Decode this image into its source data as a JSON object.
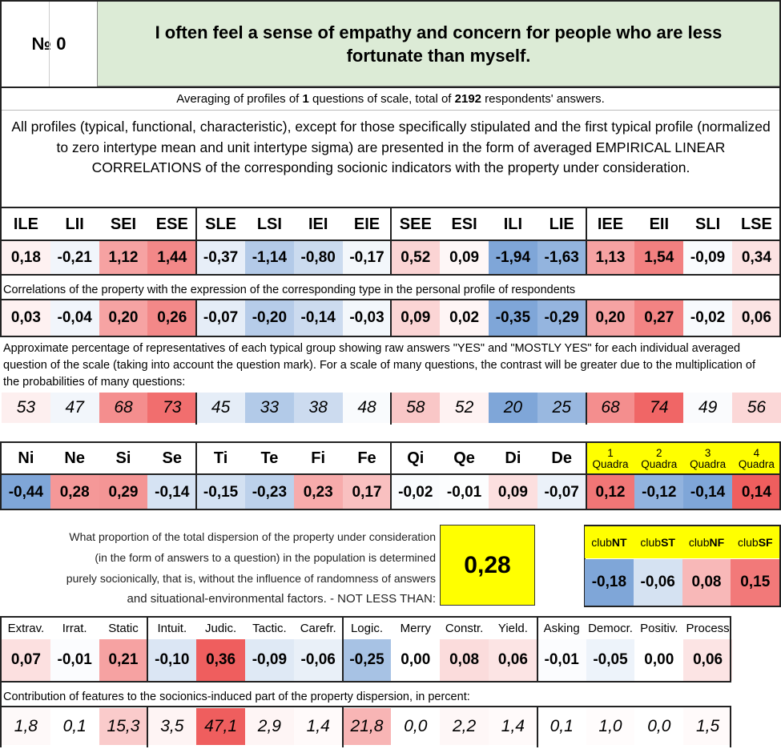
{
  "header": {
    "number_label": "№",
    "number_value": "0",
    "question": "I often feel a sense of empathy and concern for people who are less fortunate than myself."
  },
  "averaging": {
    "prefix": "Averaging of profiles of ",
    "questions": "1",
    "middle": " questions of scale, total of ",
    "respondents": "2192",
    "suffix": " respondents' answers."
  },
  "intro": "All profiles (typical, functional, characteristic), except for those specifically stipulated and the first typical profile (normalized to zero intertype mean and unit intertype sigma) are presented in the form of averaged EMPIRICAL LINEAR CORRELATIONS of the corresponding socionic indicators with the property under consideration.",
  "colors": {
    "title_bg": "#dcebd6",
    "yellow": "#ffff00",
    "red_strong": "#ef5e5e",
    "blue_strong": "#7fa6d8",
    "neutral": "#ffffff"
  },
  "types": {
    "headers": [
      "ILE",
      "LII",
      "SEI",
      "ESE",
      "SLE",
      "LSI",
      "IEI",
      "EIE",
      "SEE",
      "ESI",
      "ILI",
      "LIE",
      "IEE",
      "EII",
      "SLI",
      "LSE"
    ],
    "values": [
      "0,18",
      "-0,21",
      "1,12",
      "1,44",
      "-0,37",
      "-1,14",
      "-0,80",
      "-0,17",
      "0,52",
      "0,09",
      "-1,94",
      "-1,63",
      "1,13",
      "1,54",
      "-0,09",
      "0,34"
    ],
    "value_levels": [
      0.09,
      -0.11,
      0.58,
      0.74,
      -0.19,
      -0.59,
      -0.41,
      -0.09,
      0.27,
      0.05,
      -1,
      -0.84,
      0.58,
      0.79,
      -0.05,
      0.18
    ],
    "corr_label": "Correlations of the property with the expression of the corresponding type in the personal profile of respondents",
    "corr_values": [
      "0,03",
      "-0,04",
      "0,20",
      "0,26",
      "-0,07",
      "-0,20",
      "-0,14",
      "-0,03",
      "0,09",
      "0,02",
      "-0,35",
      "-0,29",
      "0,20",
      "0,27",
      "-0,02",
      "0,06"
    ],
    "corr_levels": [
      0.09,
      -0.11,
      0.57,
      0.74,
      -0.2,
      -0.57,
      -0.4,
      -0.09,
      0.26,
      0.06,
      -1,
      -0.83,
      0.57,
      0.77,
      -0.06,
      0.17
    ],
    "pct_label": "Approximate percentage of representatives of each typical group showing raw answers \"YES\" and \"MOSTLY YES\" for each individual averaged question of the scale (taking into account the question mark). For a scale of many questions, the contrast will be greater due to the multiplication of the probabilities of many questions:",
    "pct_values": [
      "53",
      "47",
      "68",
      "73",
      "45",
      "33",
      "38",
      "48",
      "58",
      "52",
      "20",
      "25",
      "68",
      "74",
      "49",
      "56"
    ],
    "pct_levels": [
      0.1,
      -0.1,
      0.7,
      0.9,
      -0.2,
      -0.6,
      -0.4,
      -0.05,
      0.35,
      0.08,
      -1,
      -0.8,
      0.7,
      0.95,
      -0.04,
      0.25
    ]
  },
  "functions": {
    "headers": [
      "Ni",
      "Ne",
      "Si",
      "Se",
      "Ti",
      "Te",
      "Fi",
      "Fe",
      "Qi",
      "Qe",
      "Di",
      "De"
    ],
    "values": [
      "-0,44",
      "0,28",
      "0,29",
      "-0,14",
      "-0,15",
      "-0,23",
      "0,23",
      "0,17",
      "-0,02",
      "-0,01",
      "0,09",
      "-0,07"
    ],
    "levels": [
      -1,
      0.64,
      0.66,
      -0.32,
      -0.34,
      -0.52,
      0.52,
      0.39,
      -0.05,
      -0.02,
      0.2,
      -0.16
    ]
  },
  "quadras": {
    "numbers": [
      "1",
      "2",
      "3",
      "4"
    ],
    "word": "Quadra",
    "values": [
      "0,12",
      "-0,12",
      "-0,14",
      "0,14"
    ],
    "levels": [
      0.85,
      -0.85,
      -1,
      1
    ]
  },
  "dispersion": {
    "lines": [
      "What proportion of the total dispersion of the property under consideration",
      "(in the form of answers to a question) in the population is determined",
      "purely socionically, that is, without the influence of randomness of answers",
      "and situational-environmental factors. - NOT LESS THAN:"
    ],
    "value": "0,28"
  },
  "clubs": {
    "prefix": "club",
    "names": [
      "NT",
      "ST",
      "NF",
      "SF"
    ],
    "values": [
      "-0,18",
      "-0,06",
      "0,08",
      "0,15"
    ],
    "levels": [
      -1,
      -0.33,
      0.44,
      0.83
    ]
  },
  "features": {
    "headers": [
      "Extrav.",
      "Irrat.",
      "Static",
      "Intuit.",
      "Judic.",
      "Tactic.",
      "Carefr.",
      "Logic.",
      "Merry",
      "Constr.",
      "Yield.",
      "Asking",
      "Democr.",
      "Positiv.",
      "Process"
    ],
    "values": [
      "0,07",
      "-0,01",
      "0,21",
      "-0,10",
      "0,36",
      "-0,09",
      "-0,06",
      "-0,25",
      "0,00",
      "0,08",
      "0,06",
      "-0,01",
      "-0,05",
      "0,00",
      "0,06"
    ],
    "levels": [
      0.19,
      -0.03,
      0.58,
      -0.28,
      1,
      -0.25,
      -0.17,
      -0.69,
      0,
      0.22,
      0.17,
      -0.03,
      -0.14,
      0,
      0.17
    ],
    "contrib_label": "Contribution of features to the socionics-induced part of the property dispersion, in percent:",
    "contrib_values": [
      "1,8",
      "0,1",
      "15,3",
      "3,5",
      "47,1",
      "2,9",
      "1,4",
      "21,8",
      "0,0",
      "2,2",
      "1,4",
      "0,1",
      "1,0",
      "0,0",
      "1,5"
    ],
    "contrib_levels": [
      0.04,
      0,
      0.32,
      0.07,
      1,
      0.06,
      0.03,
      0.46,
      0,
      0.05,
      0.03,
      0,
      0.02,
      0,
      0.03
    ]
  }
}
